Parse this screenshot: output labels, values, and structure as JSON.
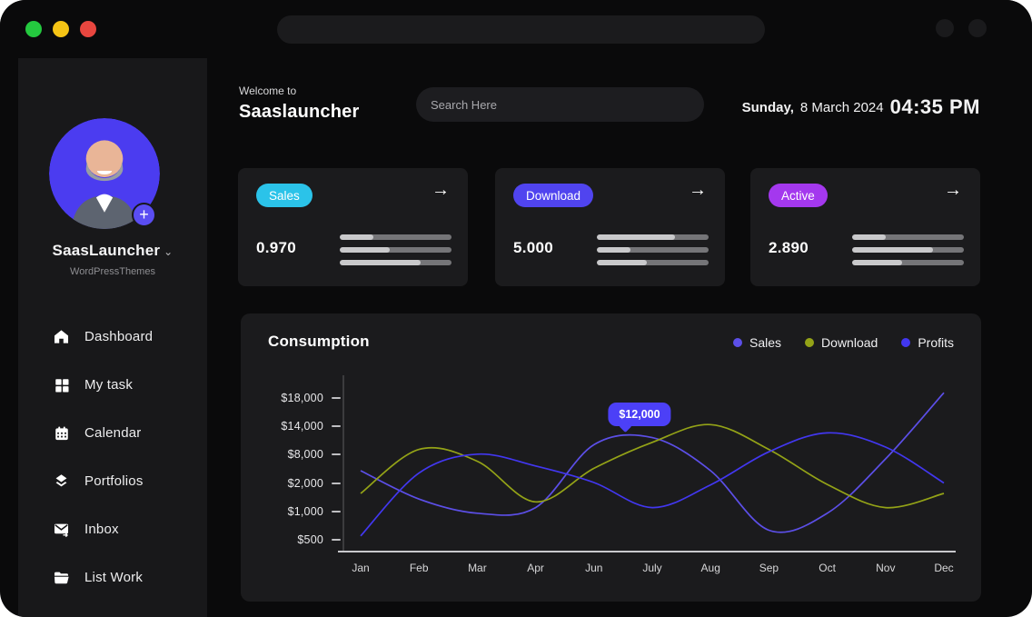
{
  "titlebar": {
    "url_text": "",
    "traffic_lights": [
      "#24c93f",
      "#f5c415",
      "#e8463f"
    ]
  },
  "icons": {
    "arrow_right": "→",
    "chevron_down": "⌄",
    "plus": "+"
  },
  "sidebar": {
    "profile": {
      "name": "SaasLauncher",
      "subtitle": "WordPressThemes"
    },
    "items": [
      {
        "label": "Dashboard",
        "icon": "home-icon"
      },
      {
        "label": "My task",
        "icon": "grid-icon"
      },
      {
        "label": "Calendar",
        "icon": "calendar-icon"
      },
      {
        "label": "Portfolios",
        "icon": "layers-icon"
      },
      {
        "label": "Inbox",
        "icon": "inbox-icon"
      },
      {
        "label": "List Work",
        "icon": "folder-icon"
      }
    ]
  },
  "header": {
    "welcome": "Welcome to",
    "brand": "Saaslauncher",
    "search_placeholder": "Search Here",
    "date_bold": "Sunday,",
    "date_rest": "8 March 2024",
    "time": "04:35 PM"
  },
  "stat_cards": [
    {
      "badge": "Sales",
      "badge_color": "#2bc3e9",
      "value": "0.970",
      "bars": [
        0.3,
        0.45,
        0.72
      ]
    },
    {
      "badge": "Download",
      "badge_color": "#5044ef",
      "value": "5.000",
      "bars": [
        0.7,
        0.3,
        0.45
      ]
    },
    {
      "badge": "Active",
      "badge_color": "#a438ee",
      "value": "2.890",
      "bars": [
        0.3,
        0.72,
        0.45
      ]
    }
  ],
  "chart_data": {
    "type": "line",
    "title": "Consumption",
    "categories": [
      "Jan",
      "Feb",
      "Mar",
      "Apr",
      "Jun",
      "July",
      "Aug",
      "Sep",
      "Oct",
      "Nov",
      "Dec"
    ],
    "y_tick_labels": [
      "$500",
      "$1,000",
      "$2,000",
      "$8,000",
      "$14,000",
      "$18,000"
    ],
    "y_tick_values": [
      500,
      1000,
      2000,
      8000,
      14000,
      18000
    ],
    "grid": false,
    "legend_position": "top-right",
    "series": [
      {
        "name": "Sales",
        "color": "#5c4fe8",
        "values": [
          5000,
          1500,
          1000,
          1200,
          10500,
          12000,
          5000,
          700,
          1000,
          7500,
          19000
        ]
      },
      {
        "name": "Download",
        "color": "#94a317",
        "values": [
          1700,
          9500,
          7000,
          1400,
          5500,
          11000,
          14500,
          9500,
          2100,
          1200,
          1700
        ]
      },
      {
        "name": "Profits",
        "color": "#4237f0",
        "values": [
          600,
          4500,
          8500,
          6000,
          2500,
          1200,
          2000,
          9000,
          13000,
          10000,
          2400
        ]
      }
    ],
    "tooltip": {
      "label": "$12,000",
      "series": "Sales",
      "category": "July",
      "value": 12000
    }
  }
}
